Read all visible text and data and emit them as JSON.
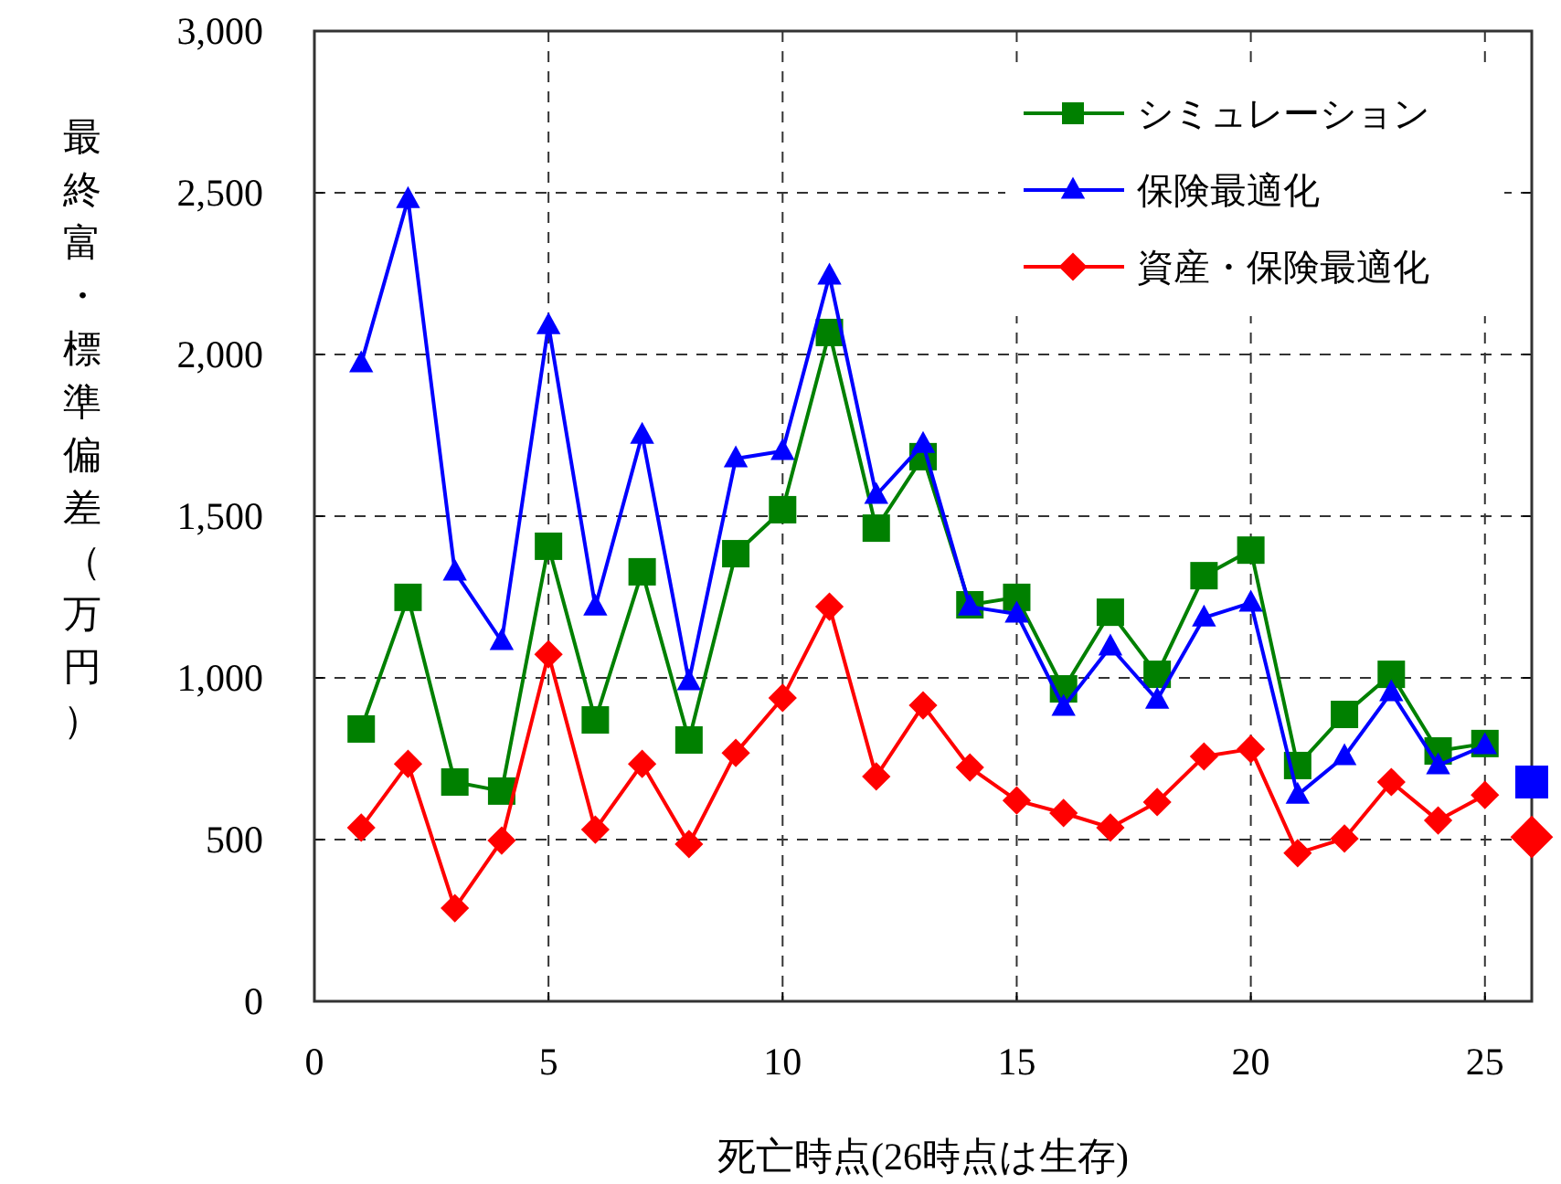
{
  "chart_data": {
    "type": "line",
    "xlabel": "死亡時点(26時点は生存)",
    "ylabel": "最終富・標準偏差（万円）",
    "xlim": [
      0,
      26
    ],
    "xticks": [
      0,
      5,
      10,
      15,
      20,
      25
    ],
    "ylim": [
      0,
      3000
    ],
    "yticks": [
      {
        "value": 0,
        "label": "0"
      },
      {
        "value": 500,
        "label": "500"
      },
      {
        "value": 1000,
        "label": "1,000"
      },
      {
        "value": 1500,
        "label": "1,500"
      },
      {
        "value": 2000,
        "label": "2,000"
      },
      {
        "value": 2500,
        "label": "2,500"
      },
      {
        "value": 3000,
        "label": "3,000"
      }
    ],
    "grid": true,
    "legend": "top right",
    "line_style": "solid",
    "series": [
      {
        "name": "シミュレーション",
        "color": "#008000",
        "marker": "square",
        "x": [
          1,
          2,
          3,
          4,
          5,
          6,
          7,
          8,
          9,
          10,
          11,
          12,
          13,
          14,
          15,
          16,
          17,
          18,
          19,
          20,
          21,
          22,
          23,
          24,
          25
        ],
        "values": [
          842,
          1249,
          678,
          650,
          1407,
          870,
          1328,
          808,
          1384,
          1520,
          2068,
          1463,
          1684,
          1226,
          1249,
          966,
          1203,
          1011,
          1316,
          1395,
          729,
          887,
          1011,
          774,
          797
        ]
      },
      {
        "name": "保険最適化",
        "color": "#0000ff",
        "marker": "triangle",
        "x": [
          1,
          2,
          3,
          4,
          5,
          6,
          7,
          8,
          9,
          10,
          11,
          12,
          13,
          14,
          15,
          16,
          17,
          18,
          19,
          20,
          21,
          22,
          23,
          24,
          25
        ],
        "values": [
          1972,
          2480,
          1328,
          1113,
          2090,
          1220,
          1751,
          989,
          1678,
          1701,
          2243,
          1565,
          1723,
          1220,
          1198,
          910,
          1096,
          932,
          1186,
          1232,
          638,
          757,
          955,
          729,
          791
        ]
      },
      {
        "name": "資産・保険最適化",
        "color": "#ff0000",
        "marker": "diamond",
        "x": [
          1,
          2,
          3,
          4,
          5,
          6,
          7,
          8,
          9,
          10,
          11,
          12,
          13,
          14,
          15,
          16,
          17,
          18,
          19,
          20,
          21,
          22,
          23,
          24,
          25
        ],
        "values": [
          537,
          734,
          288,
          497,
          1073,
          531,
          734,
          486,
          768,
          938,
          1220,
          695,
          915,
          723,
          621,
          582,
          537,
          616,
          757,
          780,
          458,
          503,
          678,
          559,
          638
        ]
      },
      {
        "type": "scatter",
        "color": "#0000ff",
        "marker": "square",
        "x": [
          26
        ],
        "values": [
          678
        ]
      },
      {
        "type": "scatter",
        "color": "#ff0000",
        "marker": "diamond",
        "x": [
          26
        ],
        "values": [
          508
        ]
      }
    ]
  }
}
